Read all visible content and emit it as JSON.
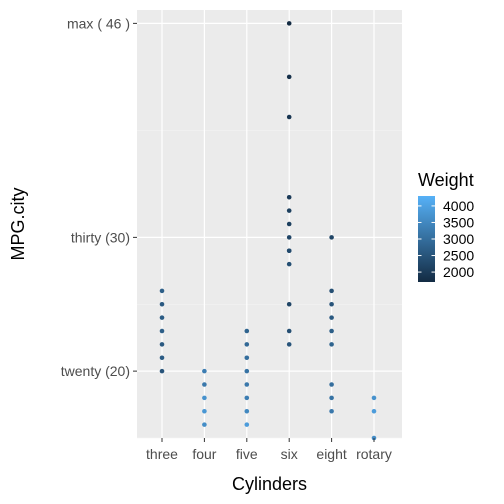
{
  "chart_data": {
    "type": "scatter",
    "title": "",
    "xlabel": "Cylinders",
    "ylabel": "MPG.city",
    "categories": [
      "three",
      "four",
      "five",
      "six",
      "eight",
      "rotary"
    ],
    "ylim": [
      15,
      47
    ],
    "y_ticks": [
      {
        "value": 20,
        "label": "twenty (20)"
      },
      {
        "value": 30,
        "label": "thirty (30)"
      },
      {
        "value": 46,
        "label": "max ( 46 )"
      }
    ],
    "grid": true,
    "legend": {
      "title": "Weight",
      "position": "right",
      "range": [
        1700,
        4300
      ],
      "ticks": [
        2000,
        2500,
        3000,
        3500,
        4000
      ],
      "colors": {
        "low": "#132B43",
        "high": "#56B1F7"
      }
    },
    "points": [
      {
        "x": "three",
        "y": 26,
        "weight": 2700
      },
      {
        "x": "three",
        "y": 25,
        "weight": 2600
      },
      {
        "x": "three",
        "y": 24,
        "weight": 2650
      },
      {
        "x": "three",
        "y": 23,
        "weight": 2700
      },
      {
        "x": "three",
        "y": 22,
        "weight": 2600
      },
      {
        "x": "three",
        "y": 21,
        "weight": 2650
      },
      {
        "x": "three",
        "y": 20,
        "weight": 2500
      },
      {
        "x": "four",
        "y": 20,
        "weight": 3300
      },
      {
        "x": "four",
        "y": 19,
        "weight": 3200
      },
      {
        "x": "four",
        "y": 18,
        "weight": 3700
      },
      {
        "x": "four",
        "y": 17,
        "weight": 3800
      },
      {
        "x": "four",
        "y": 16,
        "weight": 3600
      },
      {
        "x": "five",
        "y": 23,
        "weight": 2800
      },
      {
        "x": "five",
        "y": 22,
        "weight": 2900
      },
      {
        "x": "five",
        "y": 21,
        "weight": 3000
      },
      {
        "x": "five",
        "y": 20,
        "weight": 3100
      },
      {
        "x": "five",
        "y": 19,
        "weight": 3200
      },
      {
        "x": "five",
        "y": 18,
        "weight": 3300
      },
      {
        "x": "five",
        "y": 17,
        "weight": 3500
      },
      {
        "x": "five",
        "y": 16,
        "weight": 3900
      },
      {
        "x": "six",
        "y": 46,
        "weight": 1700
      },
      {
        "x": "six",
        "y": 42,
        "weight": 1800
      },
      {
        "x": "six",
        "y": 39,
        "weight": 1900
      },
      {
        "x": "six",
        "y": 33,
        "weight": 2000
      },
      {
        "x": "six",
        "y": 32,
        "weight": 2100
      },
      {
        "x": "six",
        "y": 31,
        "weight": 2100
      },
      {
        "x": "six",
        "y": 30,
        "weight": 2200
      },
      {
        "x": "six",
        "y": 29,
        "weight": 2300
      },
      {
        "x": "six",
        "y": 29,
        "weight": 2300
      },
      {
        "x": "six",
        "y": 28,
        "weight": 2400
      },
      {
        "x": "six",
        "y": 25,
        "weight": 2200
      },
      {
        "x": "six",
        "y": 23,
        "weight": 2400
      },
      {
        "x": "six",
        "y": 22,
        "weight": 2500
      },
      {
        "x": "eight",
        "y": 30,
        "weight": 2200
      },
      {
        "x": "eight",
        "y": 26,
        "weight": 2400
      },
      {
        "x": "eight",
        "y": 25,
        "weight": 2500
      },
      {
        "x": "eight",
        "y": 24,
        "weight": 2600
      },
      {
        "x": "eight",
        "y": 23,
        "weight": 2700
      },
      {
        "x": "eight",
        "y": 22,
        "weight": 2800
      },
      {
        "x": "eight",
        "y": 19,
        "weight": 3000
      },
      {
        "x": "eight",
        "y": 18,
        "weight": 3100
      },
      {
        "x": "eight",
        "y": 17,
        "weight": 3200
      },
      {
        "x": "rotary",
        "y": 18,
        "weight": 3700
      },
      {
        "x": "rotary",
        "y": 17,
        "weight": 3900
      },
      {
        "x": "rotary",
        "y": 15,
        "weight": 3600
      }
    ]
  }
}
